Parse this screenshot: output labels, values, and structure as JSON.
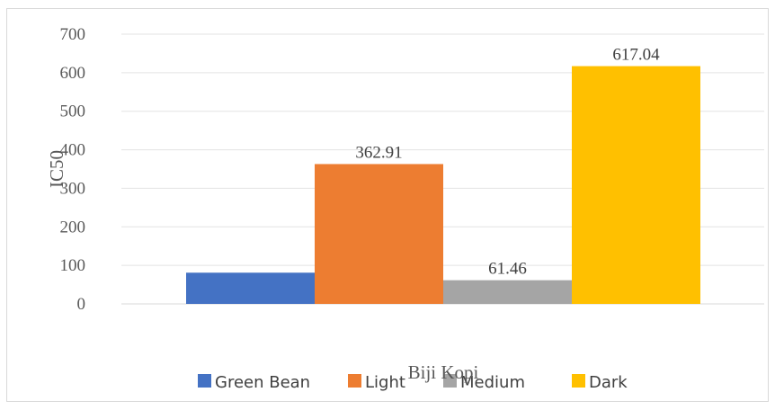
{
  "chart_data": {
    "type": "bar",
    "title": "",
    "xlabel": "Biji Kopi",
    "ylabel": "IC50",
    "ylim": [
      0,
      700
    ],
    "yticks": [
      0,
      100,
      200,
      300,
      400,
      500,
      600,
      700
    ],
    "grid": true,
    "legend_position": "bottom",
    "categories": [
      "Biji Kopi"
    ],
    "series": [
      {
        "name": "Green Bean",
        "values": [
          81
        ],
        "color": "#4472c4",
        "label": ""
      },
      {
        "name": "Light",
        "values": [
          362.91
        ],
        "color": "#ed7d31",
        "label": "362.91"
      },
      {
        "name": "Medium",
        "values": [
          61.46
        ],
        "color": "#a5a5a5",
        "label": "61.46"
      },
      {
        "name": "Dark",
        "values": [
          617.04
        ],
        "color": "#ffc000",
        "label": "617.04"
      }
    ]
  }
}
